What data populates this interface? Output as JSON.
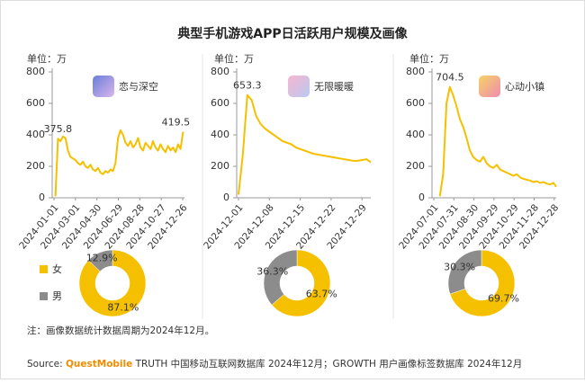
{
  "title": "典型手机游戏APP日活跃用户规模及画像",
  "note": "注：画像数据统计数据周期为2024年12月。",
  "source": {
    "label": "Source:",
    "brand": "QuestMobile",
    "text": "TRUTH 中国移动互联网数据库 2024年12月；GROWTH 用户画像标签数据库 2024年12月"
  },
  "chart_data": [
    {
      "type": "line",
      "unit": "单位：万",
      "app": "恋与深空",
      "color": "#f5c000",
      "xlim": [
        "2024-01-01",
        "2024-12-31"
      ],
      "xticks": [
        "2024-01-01",
        "2024-03-01",
        "2024-04-30",
        "2024-06-29",
        "2024-08-28",
        "2024-10-27",
        "2024-12-26"
      ],
      "ylim": [
        0,
        800
      ],
      "yticks": [
        0,
        200,
        400,
        600,
        800
      ],
      "x": [
        "2024-01-05",
        "2024-01-12",
        "2024-01-19",
        "2024-01-26",
        "2024-02-02",
        "2024-02-09",
        "2024-02-16",
        "2024-02-23",
        "2024-03-01",
        "2024-03-08",
        "2024-03-15",
        "2024-03-22",
        "2024-03-29",
        "2024-04-05",
        "2024-04-12",
        "2024-04-19",
        "2024-04-26",
        "2024-05-03",
        "2024-05-10",
        "2024-05-17",
        "2024-05-24",
        "2024-05-31",
        "2024-06-07",
        "2024-06-14",
        "2024-06-21",
        "2024-06-28",
        "2024-07-05",
        "2024-07-12",
        "2024-07-19",
        "2024-07-26",
        "2024-08-02",
        "2024-08-09",
        "2024-08-16",
        "2024-08-23",
        "2024-08-30",
        "2024-09-06",
        "2024-09-13",
        "2024-09-20",
        "2024-09-27",
        "2024-10-04",
        "2024-10-11",
        "2024-10-18",
        "2024-10-25",
        "2024-11-01",
        "2024-11-08",
        "2024-11-15",
        "2024-11-22",
        "2024-11-29",
        "2024-12-06",
        "2024-12-13",
        "2024-12-20",
        "2024-12-27"
      ],
      "values": [
        10,
        375.8,
        360,
        390,
        380,
        300,
        260,
        250,
        240,
        220,
        210,
        230,
        200,
        190,
        210,
        180,
        170,
        190,
        160,
        150,
        170,
        160,
        180,
        170,
        220,
        380,
        430,
        400,
        350,
        330,
        360,
        320,
        340,
        380,
        320,
        300,
        350,
        330,
        310,
        360,
        320,
        300,
        340,
        310,
        290,
        330,
        300,
        320,
        290,
        340,
        310,
        419.5
      ],
      "value_labels": [
        null,
        "375.8",
        null,
        null,
        null,
        null,
        null,
        null,
        null,
        null,
        null,
        null,
        null,
        null,
        null,
        null,
        null,
        null,
        null,
        null,
        null,
        null,
        null,
        null,
        null,
        null,
        null,
        null,
        null,
        null,
        null,
        null,
        null,
        null,
        null,
        null,
        null,
        null,
        null,
        null,
        null,
        null,
        null,
        null,
        null,
        null,
        null,
        null,
        null,
        null,
        null,
        "419.5"
      ]
    },
    {
      "type": "line",
      "unit": "单位：万",
      "app": "无限暖暖",
      "color": "#f5c000",
      "xlim": [
        "2024-12-01",
        "2024-12-31"
      ],
      "xticks": [
        "2024-12-01",
        "2024-12-08",
        "2024-12-15",
        "2024-12-22",
        "2024-12-29"
      ],
      "ylim": [
        0,
        800
      ],
      "yticks": [
        0,
        200,
        400,
        600,
        800
      ],
      "x": [
        "2024-12-01",
        "2024-12-02",
        "2024-12-03",
        "2024-12-04",
        "2024-12-05",
        "2024-12-06",
        "2024-12-07",
        "2024-12-08",
        "2024-12-09",
        "2024-12-10",
        "2024-12-11",
        "2024-12-12",
        "2024-12-13",
        "2024-12-14",
        "2024-12-15",
        "2024-12-16",
        "2024-12-17",
        "2024-12-18",
        "2024-12-19",
        "2024-12-20",
        "2024-12-21",
        "2024-12-22",
        "2024-12-23",
        "2024-12-24",
        "2024-12-25",
        "2024-12-26",
        "2024-12-27",
        "2024-12-28",
        "2024-12-29",
        "2024-12-30",
        "2024-12-31"
      ],
      "values": [
        20,
        280,
        653.3,
        620,
        520,
        470,
        440,
        420,
        400,
        380,
        360,
        350,
        340,
        320,
        310,
        300,
        290,
        280,
        275,
        270,
        265,
        260,
        255,
        250,
        245,
        240,
        235,
        235,
        240,
        245,
        225
      ],
      "value_labels": [
        null,
        null,
        "653.3",
        null,
        null,
        null,
        null,
        null,
        null,
        null,
        null,
        null,
        null,
        null,
        null,
        null,
        null,
        null,
        null,
        null,
        null,
        null,
        null,
        null,
        null,
        null,
        null,
        null,
        null,
        null,
        null
      ]
    },
    {
      "type": "line",
      "unit": "单位：万",
      "app": "心动小镇",
      "color": "#f5c000",
      "xlim": [
        "2024-07-01",
        "2024-12-31"
      ],
      "xticks": [
        "2024-07-01",
        "2024-07-31",
        "2024-08-30",
        "2024-09-29",
        "2024-10-29",
        "2024-11-28",
        "2024-12-28"
      ],
      "ylim": [
        0,
        800
      ],
      "yticks": [
        0,
        200,
        400,
        600,
        800
      ],
      "x": [
        "2024-07-10",
        "2024-07-15",
        "2024-07-20",
        "2024-07-25",
        "2024-07-30",
        "2024-08-04",
        "2024-08-09",
        "2024-08-14",
        "2024-08-19",
        "2024-08-24",
        "2024-08-29",
        "2024-09-03",
        "2024-09-08",
        "2024-09-13",
        "2024-09-18",
        "2024-09-23",
        "2024-09-28",
        "2024-10-03",
        "2024-10-08",
        "2024-10-13",
        "2024-10-18",
        "2024-10-23",
        "2024-10-28",
        "2024-11-02",
        "2024-11-07",
        "2024-11-12",
        "2024-11-17",
        "2024-11-22",
        "2024-11-27",
        "2024-12-02",
        "2024-12-07",
        "2024-12-12",
        "2024-12-17",
        "2024-12-22",
        "2024-12-27",
        "2024-12-31"
      ],
      "values": [
        10,
        150,
        600,
        704.5,
        650,
        580,
        500,
        450,
        380,
        300,
        260,
        240,
        230,
        260,
        220,
        200,
        190,
        210,
        180,
        170,
        160,
        150,
        140,
        150,
        130,
        120,
        115,
        110,
        100,
        105,
        95,
        100,
        90,
        85,
        95,
        70
      ],
      "value_labels": [
        null,
        null,
        null,
        "704.5",
        null,
        null,
        null,
        null,
        null,
        null,
        null,
        null,
        null,
        null,
        null,
        null,
        null,
        null,
        null,
        null,
        null,
        null,
        null,
        null,
        null,
        null,
        null,
        null,
        null,
        null,
        null,
        null,
        null,
        null,
        null,
        null
      ]
    },
    {
      "type": "pie",
      "categories": [
        "女",
        "男"
      ],
      "colors": [
        "#f5c000",
        "#8c8c8c"
      ],
      "values": [
        87.1,
        12.9
      ],
      "value_labels": [
        "87.1%",
        "12.9%"
      ]
    },
    {
      "type": "pie",
      "colors": [
        "#f5c000",
        "#8c8c8c"
      ],
      "values": [
        63.7,
        36.3
      ],
      "value_labels": [
        "63.7%",
        "36.3%"
      ]
    },
    {
      "type": "pie",
      "colors": [
        "#f5c000",
        "#8c8c8c"
      ],
      "values": [
        69.7,
        30.3
      ],
      "value_labels": [
        "69.7%",
        "30.3%"
      ]
    }
  ]
}
